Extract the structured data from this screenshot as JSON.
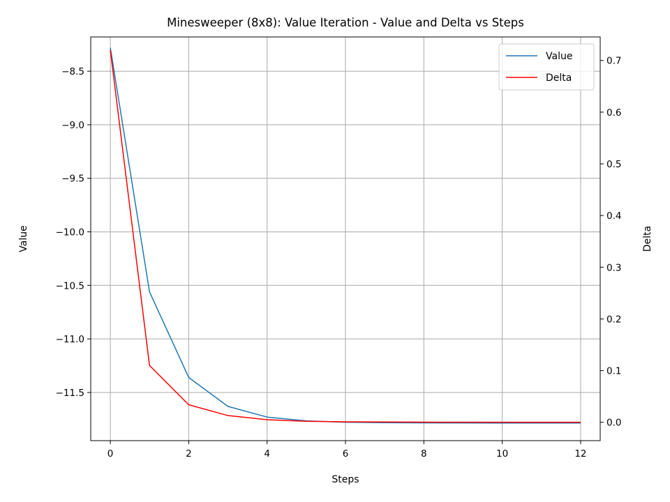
{
  "chart_data": {
    "type": "line",
    "title": "Minesweeper (8x8): Value Iteration - Value and Delta vs Steps",
    "xlabel": "Steps",
    "ylabel": "Value",
    "y2label": "Delta",
    "x": [
      0,
      1,
      2,
      3,
      4,
      5,
      6,
      7,
      8,
      9,
      10,
      11,
      12
    ],
    "xlim": [
      -0.5,
      12.5
    ],
    "ylim": [
      -11.95,
      -8.18
    ],
    "y2lim": [
      -0.0355,
      0.7455
    ],
    "xticks": [
      0,
      2,
      4,
      6,
      8,
      10,
      12
    ],
    "yticks": [
      -8.5,
      -9.0,
      -9.5,
      -10.0,
      -10.5,
      -11.0,
      -11.5
    ],
    "y2ticks": [
      0.0,
      0.1,
      0.2,
      0.3,
      0.4,
      0.5,
      0.6,
      0.7
    ],
    "xtick_labels": [
      "0",
      "2",
      "4",
      "6",
      "8",
      "10",
      "12"
    ],
    "ytick_labels": [
      "−8.5",
      "−9.0",
      "−9.5",
      "−10.0",
      "−10.5",
      "−11.0",
      "−11.5"
    ],
    "y2tick_labels": [
      "0.0",
      "0.1",
      "0.2",
      "0.3",
      "0.4",
      "0.5",
      "0.6",
      "0.7"
    ],
    "grid": true,
    "legend_position": "top-right",
    "series": [
      {
        "name": "Value",
        "axis": "left",
        "color": "#1f77b4",
        "values": [
          -8.28,
          -10.56,
          -11.36,
          -11.63,
          -11.73,
          -11.765,
          -11.778,
          -11.782,
          -11.784,
          -11.785,
          -11.786,
          -11.786,
          -11.786
        ]
      },
      {
        "name": "Delta",
        "axis": "right",
        "color": "#ff0000",
        "values": [
          0.72,
          0.11,
          0.034,
          0.013,
          0.005,
          0.002,
          0.001,
          0.0005,
          0.0002,
          0.0001,
          5e-05,
          2e-05,
          1e-05
        ]
      }
    ]
  }
}
